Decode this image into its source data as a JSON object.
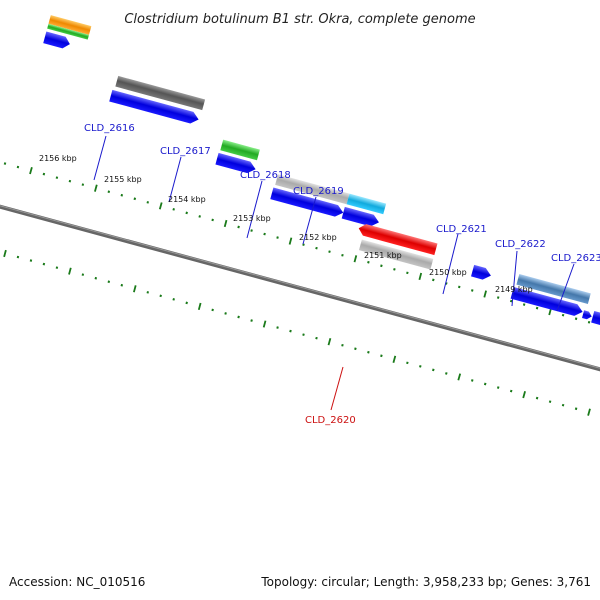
{
  "title": "Clostridium botulinum B1 str. Okra, complete genome",
  "footer": {
    "accession": "Accession: NC_010516",
    "summary": "Topology: circular; Length: 3,958,233 bp; Genes: 3,761"
  },
  "ticks": [
    "2156 kbp",
    "2155 kbp",
    "2154 kbp",
    "2153 kbp",
    "2152 kbp",
    "2151 kbp",
    "2150 kbp",
    "2149 kbp"
  ],
  "gene_labels": [
    "CLD_2616",
    "CLD_2617",
    "CLD_2618",
    "CLD_2619",
    "CLD_2620",
    "CLD_2621",
    "CLD_2622",
    "CLD_2623"
  ],
  "colors": {
    "label_blue": "#1a1acc",
    "label_red": "#cc1111",
    "cds_blue": "#1a1aee",
    "backbone": "#6e6e6e",
    "tick_green": "#1a7a1a",
    "feature_dark_gray": "#666666",
    "feature_green": "#33bb33",
    "feature_light_gray": "#bbbbbb",
    "feature_cyan": "#22bbee",
    "feature_red": "#ee1111",
    "feature_steel": "#5588bb",
    "feature_orange": "#ee8811"
  }
}
